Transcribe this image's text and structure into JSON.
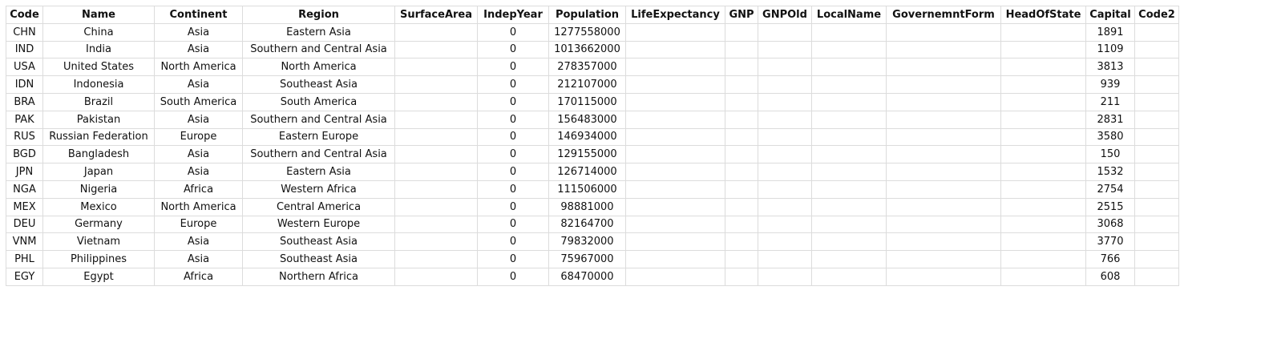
{
  "table": {
    "columns": [
      "Code",
      "Name",
      "Continent",
      "Region",
      "SurfaceArea",
      "IndepYear",
      "Population",
      "LifeExpectancy",
      "GNP",
      "GNPOld",
      "LocalName",
      "GovernemntForm",
      "HeadOfState",
      "Capital",
      "Code2"
    ],
    "rows": [
      [
        "CHN",
        "China",
        "Asia",
        "Eastern Asia",
        "",
        "0",
        "1277558000",
        "",
        "",
        "",
        "",
        "",
        "",
        "1891",
        ""
      ],
      [
        "IND",
        "India",
        "Asia",
        "Southern and Central Asia",
        "",
        "0",
        "1013662000",
        "",
        "",
        "",
        "",
        "",
        "",
        "1109",
        ""
      ],
      [
        "USA",
        "United States",
        "North America",
        "North America",
        "",
        "0",
        "278357000",
        "",
        "",
        "",
        "",
        "",
        "",
        "3813",
        ""
      ],
      [
        "IDN",
        "Indonesia",
        "Asia",
        "Southeast Asia",
        "",
        "0",
        "212107000",
        "",
        "",
        "",
        "",
        "",
        "",
        "939",
        ""
      ],
      [
        "BRA",
        "Brazil",
        "South America",
        "South America",
        "",
        "0",
        "170115000",
        "",
        "",
        "",
        "",
        "",
        "",
        "211",
        ""
      ],
      [
        "PAK",
        "Pakistan",
        "Asia",
        "Southern and Central Asia",
        "",
        "0",
        "156483000",
        "",
        "",
        "",
        "",
        "",
        "",
        "2831",
        ""
      ],
      [
        "RUS",
        "Russian Federation",
        "Europe",
        "Eastern Europe",
        "",
        "0",
        "146934000",
        "",
        "",
        "",
        "",
        "",
        "",
        "3580",
        ""
      ],
      [
        "BGD",
        "Bangladesh",
        "Asia",
        "Southern and Central Asia",
        "",
        "0",
        "129155000",
        "",
        "",
        "",
        "",
        "",
        "",
        "150",
        ""
      ],
      [
        "JPN",
        "Japan",
        "Asia",
        "Eastern Asia",
        "",
        "0",
        "126714000",
        "",
        "",
        "",
        "",
        "",
        "",
        "1532",
        ""
      ],
      [
        "NGA",
        "Nigeria",
        "Africa",
        "Western Africa",
        "",
        "0",
        "111506000",
        "",
        "",
        "",
        "",
        "",
        "",
        "2754",
        ""
      ],
      [
        "MEX",
        "Mexico",
        "North America",
        "Central America",
        "",
        "0",
        "98881000",
        "",
        "",
        "",
        "",
        "",
        "",
        "2515",
        ""
      ],
      [
        "DEU",
        "Germany",
        "Europe",
        "Western Europe",
        "",
        "0",
        "82164700",
        "",
        "",
        "",
        "",
        "",
        "",
        "3068",
        ""
      ],
      [
        "VNM",
        "Vietnam",
        "Asia",
        "Southeast Asia",
        "",
        "0",
        "79832000",
        "",
        "",
        "",
        "",
        "",
        "",
        "3770",
        ""
      ],
      [
        "PHL",
        "Philippines",
        "Asia",
        "Southeast Asia",
        "",
        "0",
        "75967000",
        "",
        "",
        "",
        "",
        "",
        "",
        "766",
        ""
      ],
      [
        "EGY",
        "Egypt",
        "Africa",
        "Northern Africa",
        "",
        "0",
        "68470000",
        "",
        "",
        "",
        "",
        "",
        "",
        "608",
        ""
      ]
    ]
  }
}
